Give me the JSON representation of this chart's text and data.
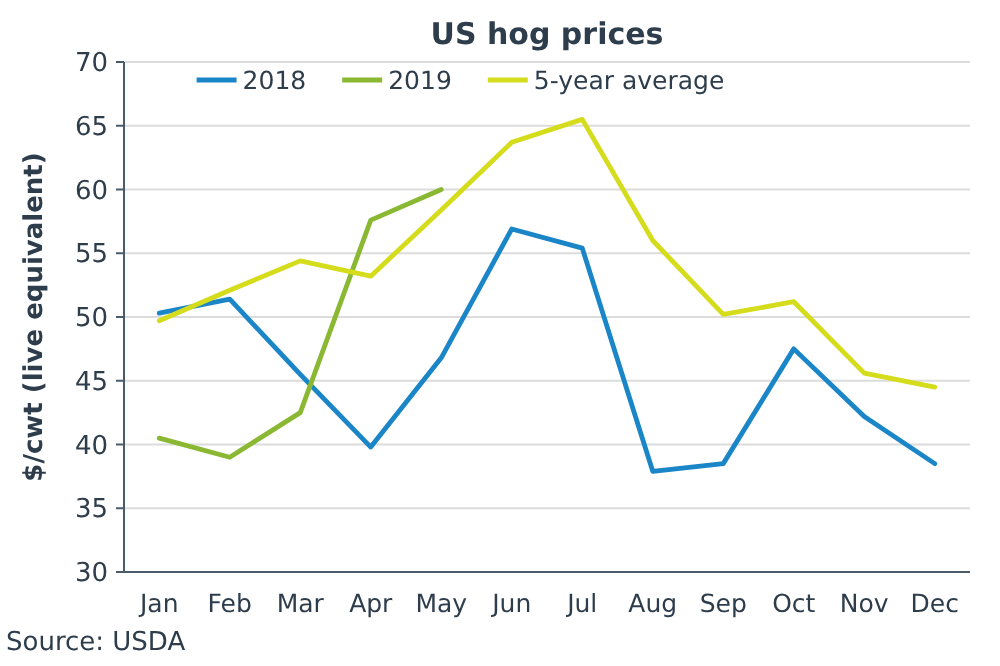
{
  "chart_data": {
    "type": "line",
    "title": "US hog prices",
    "ylabel": "$/cwt (live equivalent)",
    "categories": [
      "Jan",
      "Feb",
      "Mar",
      "Apr",
      "May",
      "Jun",
      "Jul",
      "Aug",
      "Sep",
      "Oct",
      "Nov",
      "Dec"
    ],
    "series": [
      {
        "name": "2018",
        "color": "#1a86c8",
        "values": [
          50.3,
          51.4,
          45.5,
          39.8,
          46.8,
          56.9,
          55.4,
          37.9,
          38.5,
          47.5,
          42.2,
          38.5
        ]
      },
      {
        "name": "2019",
        "color": "#8ab832",
        "values": [
          40.5,
          39.0,
          42.5,
          57.6,
          60.0,
          null,
          null,
          null,
          null,
          null,
          null,
          null
        ]
      },
      {
        "name": "5-year average",
        "color": "#d4dc1c",
        "values": [
          49.7,
          52.1,
          54.4,
          53.2,
          58.4,
          63.7,
          65.5,
          56.0,
          50.2,
          51.2,
          45.6,
          44.5
        ]
      }
    ],
    "ylim": [
      30,
      70
    ],
    "yticks": [
      30,
      35,
      40,
      45,
      50,
      55,
      60,
      65,
      70
    ],
    "grid": "y",
    "legend": "top",
    "annotations": [
      "Source: USDA"
    ]
  }
}
